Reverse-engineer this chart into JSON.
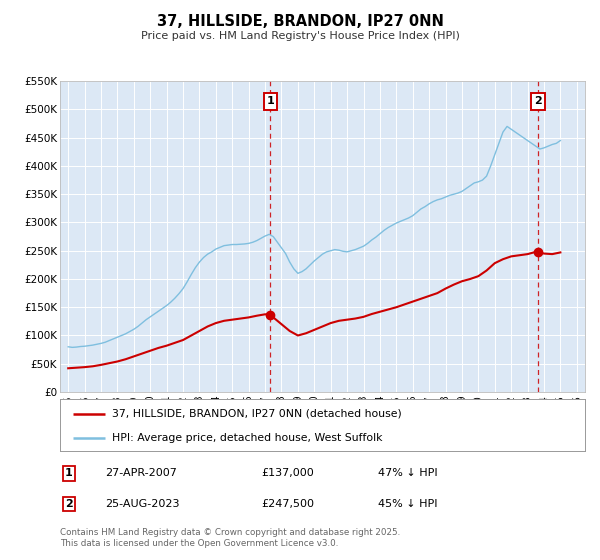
{
  "title": "37, HILLSIDE, BRANDON, IP27 0NN",
  "subtitle": "Price paid vs. HM Land Registry's House Price Index (HPI)",
  "ylim": [
    0,
    550000
  ],
  "xlim": [
    1994.5,
    2026.5
  ],
  "yticks": [
    0,
    50000,
    100000,
    150000,
    200000,
    250000,
    300000,
    350000,
    400000,
    450000,
    500000,
    550000
  ],
  "ytick_labels": [
    "£0",
    "£50K",
    "£100K",
    "£150K",
    "£200K",
    "£250K",
    "£300K",
    "£350K",
    "£400K",
    "£450K",
    "£500K",
    "£550K"
  ],
  "xticks": [
    1995,
    1996,
    1997,
    1998,
    1999,
    2000,
    2001,
    2002,
    2003,
    2004,
    2005,
    2006,
    2007,
    2008,
    2009,
    2010,
    2011,
    2012,
    2013,
    2014,
    2015,
    2016,
    2017,
    2018,
    2019,
    2020,
    2021,
    2022,
    2023,
    2024,
    2025,
    2026
  ],
  "hpi_color": "#7fbfdf",
  "price_color": "#cc0000",
  "plot_bg": "#dce8f5",
  "grid_color": "#ffffff",
  "marker1_x": 2007.33,
  "marker1_y": 137000,
  "marker2_x": 2023.65,
  "marker2_y": 247500,
  "vline1_x": 2007.33,
  "vline2_x": 2023.65,
  "legend_label_red": "37, HILLSIDE, BRANDON, IP27 0NN (detached house)",
  "legend_label_blue": "HPI: Average price, detached house, West Suffolk",
  "table_row1": [
    "1",
    "27-APR-2007",
    "£137,000",
    "47% ↓ HPI"
  ],
  "table_row2": [
    "2",
    "25-AUG-2023",
    "£247,500",
    "45% ↓ HPI"
  ],
  "footnote": "Contains HM Land Registry data © Crown copyright and database right 2025.\nThis data is licensed under the Open Government Licence v3.0.",
  "hpi_data_x": [
    1995.0,
    1995.25,
    1995.5,
    1995.75,
    1996.0,
    1996.25,
    1996.5,
    1996.75,
    1997.0,
    1997.25,
    1997.5,
    1997.75,
    1998.0,
    1998.25,
    1998.5,
    1998.75,
    1999.0,
    1999.25,
    1999.5,
    1999.75,
    2000.0,
    2000.25,
    2000.5,
    2000.75,
    2001.0,
    2001.25,
    2001.5,
    2001.75,
    2002.0,
    2002.25,
    2002.5,
    2002.75,
    2003.0,
    2003.25,
    2003.5,
    2003.75,
    2004.0,
    2004.25,
    2004.5,
    2004.75,
    2005.0,
    2005.25,
    2005.5,
    2005.75,
    2006.0,
    2006.25,
    2006.5,
    2006.75,
    2007.0,
    2007.25,
    2007.5,
    2007.75,
    2008.0,
    2008.25,
    2008.5,
    2008.75,
    2009.0,
    2009.25,
    2009.5,
    2009.75,
    2010.0,
    2010.25,
    2010.5,
    2010.75,
    2011.0,
    2011.25,
    2011.5,
    2011.75,
    2012.0,
    2012.25,
    2012.5,
    2012.75,
    2013.0,
    2013.25,
    2013.5,
    2013.75,
    2014.0,
    2014.25,
    2014.5,
    2014.75,
    2015.0,
    2015.25,
    2015.5,
    2015.75,
    2016.0,
    2016.25,
    2016.5,
    2016.75,
    2017.0,
    2017.25,
    2017.5,
    2017.75,
    2018.0,
    2018.25,
    2018.5,
    2018.75,
    2019.0,
    2019.25,
    2019.5,
    2019.75,
    2020.0,
    2020.25,
    2020.5,
    2020.75,
    2021.0,
    2021.25,
    2021.5,
    2021.75,
    2022.0,
    2022.25,
    2022.5,
    2022.75,
    2023.0,
    2023.25,
    2023.5,
    2023.75,
    2024.0,
    2024.25,
    2024.5,
    2024.75,
    2025.0
  ],
  "hpi_data_y": [
    80000,
    79000,
    79500,
    80500,
    81000,
    82000,
    83000,
    84500,
    86000,
    88000,
    91000,
    94000,
    97000,
    100000,
    103000,
    107000,
    111000,
    116000,
    122000,
    128000,
    133000,
    138000,
    143000,
    148000,
    153000,
    159000,
    166000,
    174000,
    183000,
    195000,
    208000,
    220000,
    230000,
    238000,
    244000,
    248000,
    253000,
    256000,
    259000,
    260000,
    261000,
    261000,
    261500,
    262000,
    263000,
    265000,
    268000,
    272000,
    276000,
    279000,
    275000,
    265000,
    255000,
    245000,
    230000,
    218000,
    210000,
    213000,
    218000,
    225000,
    232000,
    238000,
    244000,
    248000,
    250000,
    252000,
    251000,
    249000,
    248000,
    250000,
    252000,
    255000,
    258000,
    263000,
    269000,
    274000,
    280000,
    286000,
    291000,
    295000,
    299000,
    302000,
    305000,
    308000,
    312000,
    318000,
    324000,
    328000,
    333000,
    337000,
    340000,
    342000,
    345000,
    348000,
    350000,
    352000,
    355000,
    360000,
    365000,
    370000,
    372000,
    375000,
    382000,
    400000,
    420000,
    440000,
    460000,
    470000,
    465000,
    460000,
    455000,
    450000,
    445000,
    440000,
    435000,
    430000,
    432000,
    435000,
    438000,
    440000,
    445000
  ],
  "price_data_x": [
    1995.0,
    1995.5,
    1996.0,
    1996.5,
    1997.0,
    1997.5,
    1998.0,
    1998.5,
    1999.0,
    1999.5,
    2000.0,
    2000.5,
    2001.0,
    2001.5,
    2002.0,
    2002.5,
    2003.0,
    2003.5,
    2004.0,
    2004.5,
    2005.0,
    2005.5,
    2006.0,
    2006.5,
    2007.0,
    2007.33,
    2007.5,
    2008.0,
    2008.5,
    2009.0,
    2009.5,
    2010.0,
    2010.5,
    2011.0,
    2011.5,
    2012.0,
    2012.5,
    2013.0,
    2013.5,
    2014.0,
    2014.5,
    2015.0,
    2015.5,
    2016.0,
    2016.5,
    2017.0,
    2017.5,
    2018.0,
    2018.5,
    2019.0,
    2019.5,
    2020.0,
    2020.5,
    2021.0,
    2021.5,
    2022.0,
    2022.5,
    2023.0,
    2023.5,
    2023.65,
    2024.0,
    2024.5,
    2025.0
  ],
  "price_data_y": [
    42000,
    43000,
    44000,
    45500,
    48000,
    51000,
    54000,
    58000,
    63000,
    68000,
    73000,
    78000,
    82000,
    87000,
    92000,
    100000,
    108000,
    116000,
    122000,
    126000,
    128000,
    130000,
    132000,
    135000,
    137500,
    137000,
    132000,
    120000,
    108000,
    100000,
    104000,
    110000,
    116000,
    122000,
    126000,
    128000,
    130000,
    133000,
    138000,
    142000,
    146000,
    150000,
    155000,
    160000,
    165000,
    170000,
    175000,
    183000,
    190000,
    196000,
    200000,
    205000,
    215000,
    228000,
    235000,
    240000,
    242000,
    244000,
    248000,
    247500,
    245000,
    244000,
    247000
  ]
}
